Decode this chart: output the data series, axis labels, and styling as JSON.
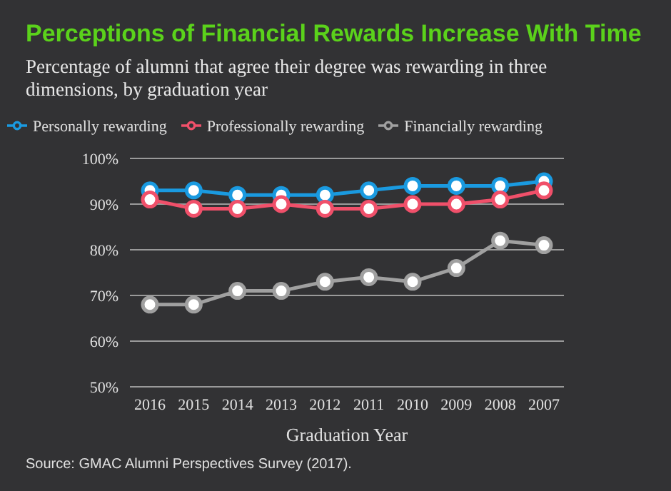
{
  "chart_data": {
    "type": "line",
    "title": "Perceptions of Financial Rewards Increase With Time",
    "subtitle": "Percentage of alumni that agree their degree was rewarding in three dimensions, by graduation year",
    "xlabel": "Graduation Year",
    "annotations": [
      "Source: GMAC Alumni Perspectives Survey (2017)."
    ],
    "categories": [
      "2016",
      "2015",
      "2014",
      "2013",
      "2012",
      "2011",
      "2010",
      "2009",
      "2008",
      "2007"
    ],
    "series": [
      {
        "name": "Personally rewarding",
        "color": "#1a9ae0",
        "values": [
          93,
          93,
          92,
          92,
          92,
          93,
          94,
          94,
          94,
          95
        ]
      },
      {
        "name": "Professionally rewarding",
        "color": "#f0506a",
        "values": [
          91,
          89,
          89,
          90,
          89,
          89,
          90,
          90,
          91,
          93
        ]
      },
      {
        "name": "Financially rewarding",
        "color": "#a0a0a0",
        "values": [
          68,
          68,
          71,
          71,
          73,
          74,
          73,
          76,
          82,
          81
        ]
      }
    ],
    "ylim": [
      50,
      100
    ],
    "yticks": [
      {
        "value": 50,
        "label": "50%"
      },
      {
        "value": 60,
        "label": "60%"
      },
      {
        "value": 70,
        "label": "70%"
      },
      {
        "value": 80,
        "label": "80%"
      },
      {
        "value": 90,
        "label": "90%"
      },
      {
        "value": 100,
        "label": "100%"
      }
    ],
    "grid": "y",
    "legend": "top",
    "marker": "circle",
    "line_style": "solid"
  }
}
